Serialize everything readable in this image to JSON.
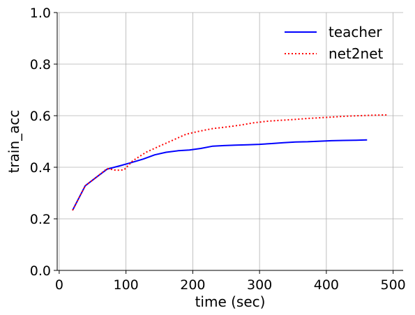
{
  "chart_data": {
    "type": "line",
    "title": "",
    "xlabel": "time (sec)",
    "ylabel": "train_acc",
    "xlim": [
      -3,
      515
    ],
    "ylim": [
      0.0,
      1.0
    ],
    "x_ticks": [
      0,
      100,
      200,
      300,
      400,
      500
    ],
    "y_ticks": [
      0.0,
      0.2,
      0.4,
      0.6,
      0.8,
      1.0
    ],
    "x_tick_labels": [
      "0",
      "100",
      "200",
      "300",
      "400",
      "500"
    ],
    "y_tick_labels": [
      "0.0",
      "0.2",
      "0.4",
      "0.6",
      "0.8",
      "1.0"
    ],
    "grid": true,
    "legend_position": "upper-right",
    "series": [
      {
        "name": "teacher",
        "color": "#0000ff",
        "style": "solid",
        "x": [
          20,
          39,
          55,
          72,
          90,
          108,
          126,
          143,
          160,
          178,
          195,
          212,
          230,
          247,
          264,
          282,
          300,
          318,
          336,
          354,
          372,
          390,
          408,
          426,
          444,
          461
        ],
        "y": [
          0.233,
          0.328,
          0.36,
          0.393,
          0.405,
          0.418,
          0.432,
          0.448,
          0.458,
          0.464,
          0.467,
          0.473,
          0.482,
          0.484,
          0.486,
          0.487,
          0.489,
          0.492,
          0.495,
          0.498,
          0.499,
          0.501,
          0.503,
          0.504,
          0.505,
          0.506
        ]
      },
      {
        "name": "net2net",
        "color": "#ff0000",
        "style": "dotted",
        "x": [
          20,
          39,
          55,
          72,
          85,
          97,
          110,
          130,
          150,
          170,
          190,
          210,
          230,
          250,
          270,
          290,
          310,
          330,
          350,
          370,
          390,
          410,
          430,
          450,
          470,
          490
        ],
        "y": [
          0.233,
          0.328,
          0.36,
          0.395,
          0.388,
          0.39,
          0.425,
          0.458,
          0.482,
          0.505,
          0.528,
          0.54,
          0.55,
          0.556,
          0.563,
          0.572,
          0.578,
          0.582,
          0.585,
          0.589,
          0.592,
          0.595,
          0.598,
          0.6,
          0.602,
          0.603
        ]
      }
    ]
  }
}
